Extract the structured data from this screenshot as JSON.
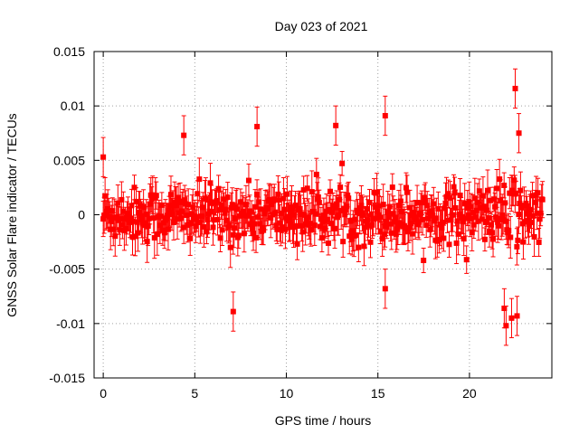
{
  "chart_data": {
    "type": "scatter",
    "title": "Day 023 of 2021",
    "xlabel": "GPS time / hours",
    "ylabel": "GNSS Solar Flare indicator / TECUs",
    "xlim": [
      -0.5,
      24.5
    ],
    "ylim": [
      -0.015,
      0.015
    ],
    "x_ticks": [
      "0",
      "5",
      "10",
      "15",
      "20"
    ],
    "x_tick_values": [
      0,
      5,
      10,
      15,
      20
    ],
    "y_ticks": [
      "-0.015",
      "-0.01",
      "-0.005",
      "0",
      "0.005",
      "0.01",
      "0.015"
    ],
    "y_tick_values": [
      -0.015,
      -0.01,
      -0.005,
      0,
      0.005,
      0.01,
      0.015
    ],
    "grid": true,
    "legend": "none",
    "series": [
      {
        "color": "#ff0000",
        "marker": "square",
        "error_bars": true,
        "x_range": [
          0,
          24
        ],
        "sample_interval_hours": 0.00833,
        "typical_y_spread": 0.003,
        "typical_error": 0.0015,
        "notable_points": [
          {
            "x": 0.0,
            "y": 0.0053
          },
          {
            "x": 4.4,
            "y": 0.0073
          },
          {
            "x": 7.1,
            "y": -0.0089
          },
          {
            "x": 8.4,
            "y": 0.0081
          },
          {
            "x": 12.7,
            "y": 0.0082
          },
          {
            "x": 15.4,
            "y": 0.0091
          },
          {
            "x": 15.4,
            "y": -0.0068
          },
          {
            "x": 21.9,
            "y": -0.0086
          },
          {
            "x": 22.0,
            "y": -0.0102
          },
          {
            "x": 22.3,
            "y": -0.0095
          },
          {
            "x": 22.5,
            "y": 0.0116
          },
          {
            "x": 22.6,
            "y": -0.0093
          },
          {
            "x": 22.7,
            "y": 0.0075
          }
        ]
      }
    ]
  }
}
